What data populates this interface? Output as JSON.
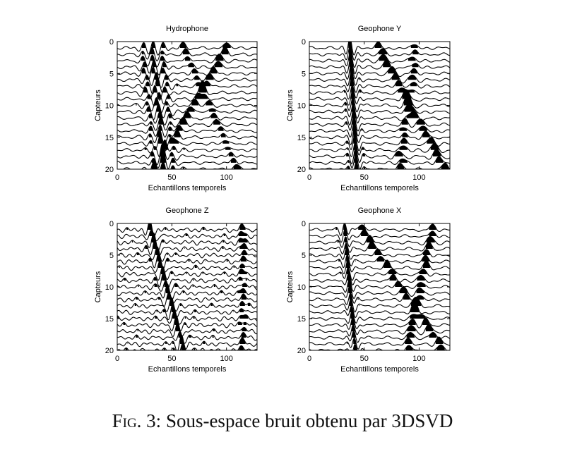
{
  "caption": {
    "label": "Fig. 3:",
    "text": "Sous-espace bruit obtenu par 3DSVD"
  },
  "chart_data": [
    {
      "type": "line",
      "title": "Hydrophone",
      "xlabel": "Echantillons temporels",
      "ylabel": "Capteurs",
      "xlim": [
        0,
        128
      ],
      "ylim": [
        0,
        20
      ],
      "xticks": [
        0,
        50,
        100
      ],
      "yticks": [
        0,
        5,
        10,
        15,
        20
      ],
      "traces": 20,
      "trace_positions": [
        1,
        20
      ],
      "y_reversed": true,
      "fill": "positive-lobes"
    },
    {
      "type": "line",
      "title": "Geophone Y",
      "xlabel": "Echantillons temporels",
      "ylabel": "Capteurs",
      "xlim": [
        0,
        128
      ],
      "ylim": [
        0,
        20
      ],
      "xticks": [
        0,
        50,
        100
      ],
      "yticks": [
        0,
        5,
        10,
        15,
        20
      ],
      "traces": 20,
      "trace_positions": [
        1,
        20
      ],
      "y_reversed": true,
      "fill": "positive-lobes"
    },
    {
      "type": "line",
      "title": "Geophone Z",
      "xlabel": "Echantillons temporels",
      "ylabel": "Capteurs",
      "xlim": [
        0,
        128
      ],
      "ylim": [
        0,
        20
      ],
      "xticks": [
        0,
        50,
        100
      ],
      "yticks": [
        0,
        5,
        10,
        15,
        20
      ],
      "traces": 20,
      "trace_positions": [
        1,
        20
      ],
      "y_reversed": true,
      "fill": "positive-lobes"
    },
    {
      "type": "line",
      "title": "Geophone X",
      "xlabel": "Echantillons temporels",
      "ylabel": "Capteurs",
      "xlim": [
        0,
        128
      ],
      "ylim": [
        0,
        20
      ],
      "xticks": [
        0,
        50,
        100
      ],
      "yticks": [
        0,
        5,
        10,
        15,
        20
      ],
      "traces": 20,
      "trace_positions": [
        1,
        20
      ],
      "y_reversed": true,
      "fill": "positive-lobes"
    }
  ]
}
